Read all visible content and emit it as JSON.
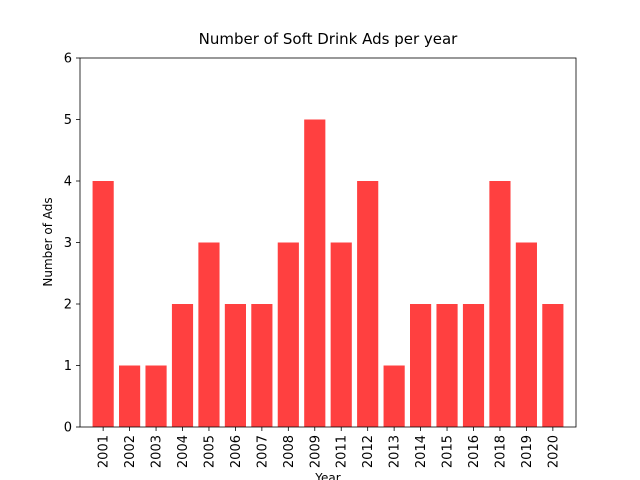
{
  "chart_data": {
    "type": "bar",
    "title": "Number of Soft Drink Ads per year",
    "x_label": "Year",
    "y_label": "Number of Ads",
    "categories": [
      "2001",
      "2002",
      "2003",
      "2004",
      "2005",
      "2006",
      "2007",
      "2008",
      "2009",
      "2011",
      "2012",
      "2013",
      "2014",
      "2015",
      "2016",
      "2018",
      "2019",
      "2020"
    ],
    "values": [
      4,
      1,
      1,
      2,
      3,
      2,
      2,
      3,
      5,
      3,
      4,
      1,
      2,
      2,
      2,
      4,
      3,
      2
    ],
    "color": "#ff4040",
    "ylim": [
      0,
      6
    ],
    "yticks": [
      0,
      1,
      2,
      3,
      4,
      5,
      6
    ],
    "grid": false
  }
}
